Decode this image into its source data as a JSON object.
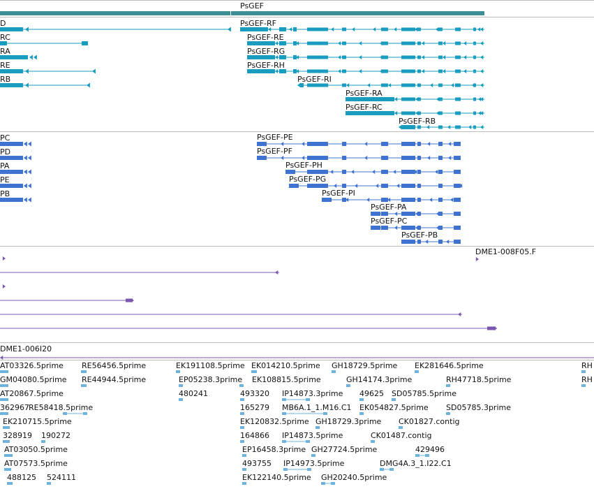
{
  "colors": {
    "gene_bar": "#3b8f92",
    "transcript": "#1a9bc0",
    "cds": "#3f73d1",
    "clone": "#7b56b0",
    "est": "#6fb2dc"
  },
  "gene": {
    "label": "PsGEF"
  },
  "transcripts_left": [
    "D",
    "RC",
    "RA",
    "RE",
    "RB"
  ],
  "transcripts_right": [
    "PsGEF-RF",
    "PsGEF-RE",
    "PsGEF-RG",
    "PsGEF-RH",
    "PsGEF-RI",
    "PsGEF-RA",
    "PsGEF-RC",
    "PsGEF-RB"
  ],
  "cds_left": [
    "PC",
    "PD",
    "PA",
    "PE",
    "PB"
  ],
  "cds_right": [
    "PsGEF-PE",
    "PsGEF-PF",
    "PsGEF-PH",
    "PsGEF-PG",
    "PsGEF-PI",
    "PsGEF-PA",
    "PsGEF-PC",
    "PsGEF-PB"
  ],
  "clones": {
    "label": "DME1-008F05.F"
  },
  "clone2": {
    "label": "DME1-006I20"
  },
  "ests": [
    "AT03326.5prime",
    "RE56456.5prime",
    "EK191108.5prime",
    "EK014210.5prime",
    "GH18729.5prime",
    "EK281646.5prime",
    "RH",
    "GM04080.5prime",
    "RE44944.5prime",
    "EP05238.3prime",
    "EK108815.5prime",
    "GH14174.3prime",
    "RH47718.5prime",
    "RH",
    "AT20867.5prime",
    "480241",
    "493320",
    "IP14873.3prime",
    "49625",
    "SD05785.5prime",
    "362967",
    "RE58418.5prime",
    "165279",
    "MB6A.1_1.M16.C1",
    "EK054827.5prime",
    "SD05785.3prime",
    "EK210715.5prime",
    "EK120832.5prime",
    "GH18729.3prime",
    "CK01827.contig",
    "328919",
    "190272",
    "164866",
    "IP14873.5prime",
    "CK01487.contig",
    "AT03050.5prime",
    "EP16458.3prime",
    "GH27724.5prime",
    "429496",
    "AT07573.5prime",
    "493755",
    "IP14973.5prime",
    "DMG4A.3_1.I22.C1",
    "488125",
    "524111",
    "EK122140.5prime",
    "GH20240.5prime"
  ]
}
